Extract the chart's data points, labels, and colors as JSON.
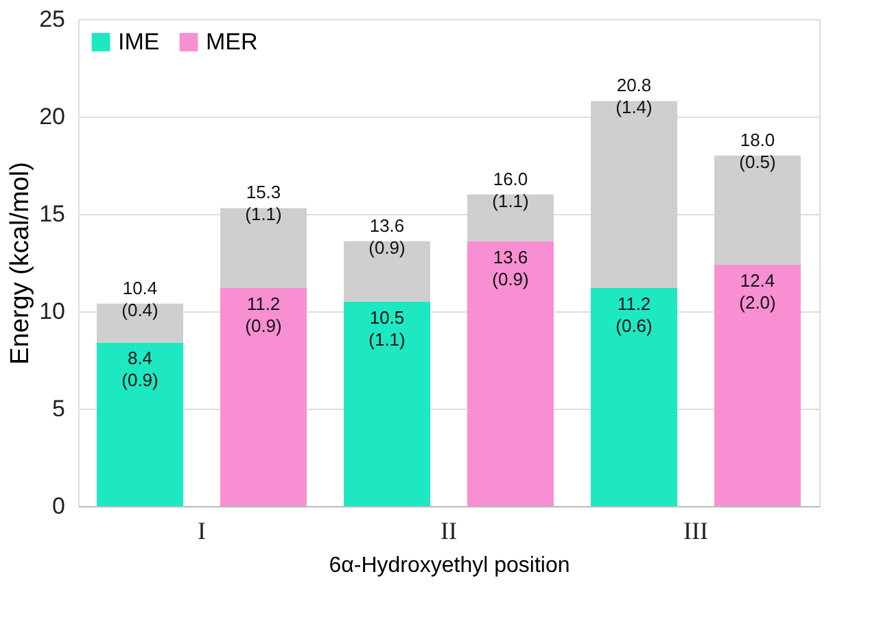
{
  "chart_data": {
    "type": "bar",
    "stacked": true,
    "xlabel": "6α-Hydroxyethyl position",
    "ylabel": "Energy (kcal/mol)",
    "categories": [
      "I",
      null,
      "II",
      null,
      "III",
      null
    ],
    "series": [
      {
        "name": "IME",
        "color": "#1ee8c2",
        "values": [
          8.4,
          null,
          10.5,
          null,
          11.2,
          null
        ],
        "value_labels": [
          "8.4\n(0.9)",
          null,
          "10.5\n(1.1)",
          null,
          "11.2\n(0.6)",
          null
        ]
      },
      {
        "name": "MER",
        "color": "#f78fd2",
        "values": [
          null,
          11.2,
          null,
          13.6,
          null,
          12.4
        ],
        "value_labels": [
          null,
          "11.2\n(0.9)",
          null,
          "13.6\n(0.9)",
          null,
          "12.4\n(2.0)"
        ]
      },
      {
        "color": "#d0cfcf",
        "values": [
          2.0,
          4.1,
          3.1,
          2.4,
          9.6,
          5.6
        ]
      }
    ],
    "totals": [
      "10.4\n(0.4)",
      "15.3\n(1.1)",
      "13.6\n(0.9)",
      "16.0\n(1.1)",
      "20.8\n(1.4)",
      "18.0\n(0.5)"
    ],
    "ylim": [
      0,
      25
    ],
    "yticks": [
      0,
      5,
      10,
      15,
      20,
      25
    ],
    "grid": "y",
    "legend": "top left"
  }
}
